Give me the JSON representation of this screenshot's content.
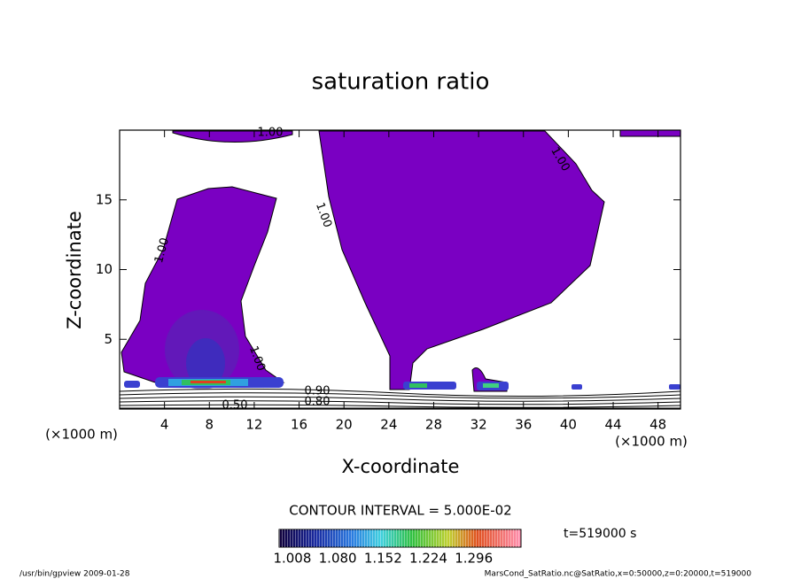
{
  "chart_data": {
    "type": "contour",
    "title": "saturation ratio",
    "xlabel": "X-coordinate",
    "ylabel": "Z-coordinate",
    "x_unit": "(×1000 m)",
    "xlim": [
      0,
      50
    ],
    "xticks": [
      4,
      8,
      12,
      16,
      20,
      24,
      28,
      32,
      36,
      40,
      44,
      48
    ],
    "ylim": [
      0,
      20
    ],
    "yticks": [
      5,
      10,
      15
    ],
    "fill_color": "#7a00c2",
    "contour_labels": [
      "1.00",
      "1.00",
      "1.00",
      "1.00",
      "1.00",
      "0.80",
      "0.90",
      "0.50"
    ],
    "contour_interval": "CONTOUR INTERVAL = 5.000E-02",
    "colorbar": {
      "lim": [
        0.987,
        1.371
      ],
      "ticks": [
        {
          "value": 1.008,
          "label": "1.008"
        },
        {
          "value": 1.08,
          "label": "1.080"
        },
        {
          "value": 1.152,
          "label": "1.152"
        },
        {
          "value": 1.224,
          "label": "1.224"
        },
        {
          "value": 1.296,
          "label": "1.296"
        }
      ]
    },
    "time_label": "t=519000 s",
    "footer_left": "/usr/bin/gpview  2009-01-28",
    "footer_right": "MarsCond_SatRatio.nc@SatRatio,x=0:50000,z=0:20000,t=519000"
  }
}
